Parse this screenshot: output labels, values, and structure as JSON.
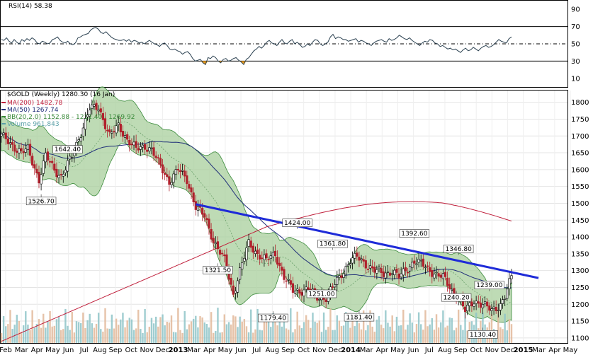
{
  "chart_data": {
    "type": "candlestick",
    "rsi_panel": {
      "title": "RSI(14) 58.38",
      "y_ticks": [
        90,
        70,
        50,
        30,
        10
      ],
      "overbought": 70,
      "midline": 50,
      "oversold": 30,
      "values": [
        55,
        54,
        57,
        53,
        51,
        55,
        52,
        50,
        55,
        53,
        56,
        54,
        57,
        55,
        51,
        50,
        53,
        52,
        50,
        51,
        55,
        56,
        58,
        54,
        52,
        51,
        53,
        50,
        49,
        51,
        57,
        58,
        60,
        61,
        62,
        66,
        68,
        69,
        67,
        63,
        62,
        64,
        61,
        58,
        56,
        55,
        54,
        54,
        55,
        53,
        55,
        52,
        54,
        53,
        51,
        52,
        50,
        52,
        54,
        52,
        50,
        49,
        47,
        50,
        51,
        48,
        44,
        43,
        44,
        42,
        41,
        38,
        40,
        41,
        38,
        33,
        30,
        31,
        32,
        28,
        26,
        34,
        33,
        36,
        34,
        30,
        28,
        32,
        33,
        30,
        31,
        33,
        34,
        31,
        29,
        26,
        32,
        34,
        38,
        42,
        44,
        47,
        45,
        48,
        52,
        54,
        51,
        50,
        48,
        52,
        55,
        51,
        50,
        53,
        55,
        50,
        52,
        49,
        46,
        47,
        50,
        48,
        52,
        55,
        54,
        50,
        48,
        50,
        52,
        58,
        61,
        56,
        58,
        57,
        55,
        55,
        53,
        54,
        55,
        56,
        52,
        54,
        53,
        51,
        50,
        48,
        51,
        53,
        54,
        55,
        53,
        52,
        56,
        54,
        55,
        57,
        60,
        58,
        56,
        55,
        57,
        54,
        52,
        50,
        48,
        51,
        53,
        52,
        55,
        54,
        51,
        50,
        47,
        48,
        46,
        44,
        45,
        43,
        44,
        42,
        40,
        43,
        45,
        42,
        43,
        46,
        44,
        42,
        45,
        47,
        48,
        46,
        47,
        49,
        52,
        55,
        53,
        52,
        51,
        56,
        58
      ]
    },
    "price_panel": {
      "title": "$GOLD (Weekly) 1280.30 (16 Jan)",
      "legend": [
        {
          "label": "MA(200) 1482.78",
          "color": "#c0203c"
        },
        {
          "label": "MA(50) 1267.74",
          "color": "#1f2e78"
        },
        {
          "label": "BB(20,2.0) 1152.88 - 1211.40 - 1269.92",
          "color": "#3a8a3a"
        },
        {
          "label": "Volume 961,843",
          "color": "#5aa0a8"
        }
      ],
      "y_ticks": [
        1800,
        1750,
        1700,
        1650,
        1600,
        1550,
        1500,
        1450,
        1400,
        1350,
        1300,
        1250,
        1200,
        1150,
        1100
      ],
      "ylim": [
        1085,
        1835
      ],
      "close_anchors": [
        [
          0,
          1700
        ],
        [
          9,
          1650
        ],
        [
          12,
          1660
        ],
        [
          17,
          1570
        ],
        [
          20,
          1640
        ],
        [
          24,
          1600
        ],
        [
          27,
          1580
        ],
        [
          32,
          1640
        ],
        [
          36,
          1710
        ],
        [
          40,
          1780
        ],
        [
          44,
          1785
        ],
        [
          49,
          1700
        ],
        [
          53,
          1730
        ],
        [
          57,
          1690
        ],
        [
          61,
          1660
        ],
        [
          65,
          1670
        ],
        [
          68,
          1660
        ],
        [
          71,
          1620
        ],
        [
          76,
          1565
        ],
        [
          80,
          1600
        ],
        [
          84,
          1570
        ],
        [
          88,
          1490
        ],
        [
          92,
          1460
        ],
        [
          96,
          1390
        ],
        [
          101,
          1330
        ],
        [
          105,
          1230
        ],
        [
          108,
          1300
        ],
        [
          112,
          1380
        ],
        [
          116,
          1350
        ],
        [
          120,
          1330
        ],
        [
          124,
          1350
        ],
        [
          128,
          1280
        ],
        [
          132,
          1240
        ],
        [
          135,
          1240
        ],
        [
          139,
          1245
        ],
        [
          143,
          1220
        ],
        [
          147,
          1220
        ],
        [
          150,
          1250
        ],
        [
          154,
          1290
        ],
        [
          158,
          1330
        ],
        [
          161,
          1340
        ],
        [
          165,
          1320
        ],
        [
          169,
          1300
        ],
        [
          173,
          1290
        ],
        [
          177,
          1300
        ],
        [
          180,
          1280
        ],
        [
          183,
          1300
        ],
        [
          187,
          1330
        ],
        [
          190,
          1320
        ],
        [
          194,
          1300
        ],
        [
          197,
          1290
        ],
        [
          200,
          1280
        ],
        [
          204,
          1240
        ],
        [
          207,
          1220
        ],
        [
          210,
          1180
        ],
        [
          214,
          1210
        ],
        [
          218,
          1200
        ],
        [
          222,
          1180
        ],
        [
          226,
          1200
        ],
        [
          228,
          1225
        ],
        [
          231,
          1280
        ]
      ],
      "annotations": [
        "1642.40",
        "1526.70",
        "1321.50",
        "1424.00",
        "1361.80",
        "1179.40",
        "1251.00",
        "1181.40",
        "1392.60",
        "1346.80",
        "1240.20",
        "1239.00",
        "1130.40"
      ],
      "x_labels": [
        "Feb",
        "Mar",
        "Apr",
        "May",
        "Jun",
        "Jul",
        "Aug",
        "Sep",
        "Oct",
        "Nov",
        "Dec",
        "2013",
        "Mar",
        "Apr",
        "May",
        "Jun",
        "Jul",
        "Aug",
        "Sep",
        "Oct",
        "Nov",
        "Dec",
        "2014",
        "Mar",
        "Apr",
        "May",
        "Jun",
        "Jul",
        "Aug",
        "Sep",
        "Oct",
        "Nov",
        "Dec",
        "2015",
        "Mar",
        "Apr",
        "May"
      ],
      "trendline": [
        [
          1497,
          0.0
        ],
        [
          1278,
          1.0
        ]
      ]
    }
  }
}
